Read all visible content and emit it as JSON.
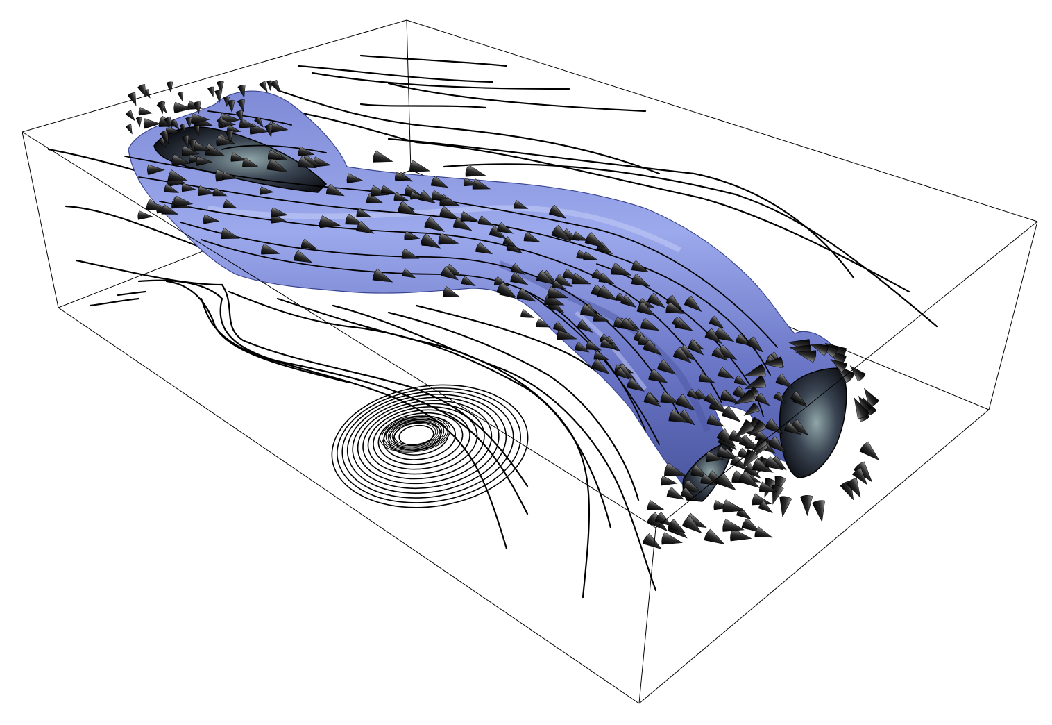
{
  "scene": {
    "kind": "3d-flow-visualization",
    "background_color": "#ffffff",
    "box_line_color": "#000000",
    "isosurface_color": "#6b78c8",
    "isosurface_highlight": "#b9c4f2",
    "isosurface_shadow": "#3f4a94",
    "cap_color": "#1b1f2c",
    "cap_highlight": "#8fa6a8",
    "streamline_color": "#000000",
    "arrow_color": "#111111"
  }
}
